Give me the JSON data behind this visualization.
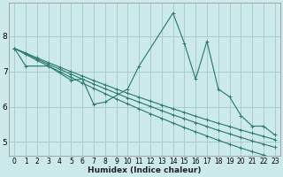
{
  "xlabel": "Humidex (Indice chaleur)",
  "xlim": [
    -0.5,
    23.5
  ],
  "ylim": [
    4.6,
    8.95
  ],
  "xticks": [
    0,
    1,
    2,
    3,
    4,
    5,
    6,
    7,
    8,
    9,
    10,
    11,
    12,
    13,
    14,
    15,
    16,
    17,
    18,
    19,
    20,
    21,
    22,
    23
  ],
  "yticks": [
    5,
    6,
    7,
    8
  ],
  "bg_color": "#cceaea",
  "grid_color": "#aacccc",
  "line_color": "#2e7d6e",
  "line1_x": [
    0,
    1,
    2,
    3,
    4,
    5,
    6,
    7,
    8,
    9,
    10,
    11,
    12,
    13,
    14,
    15,
    16,
    17,
    18,
    19,
    20,
    21,
    22,
    23
  ],
  "line1_y": [
    7.65,
    7.48,
    7.31,
    7.15,
    6.99,
    6.83,
    6.67,
    6.52,
    6.37,
    6.22,
    6.08,
    5.94,
    5.8,
    5.67,
    5.54,
    5.41,
    5.29,
    5.17,
    5.05,
    4.94,
    4.83,
    4.73,
    4.63,
    4.53
  ],
  "line2_x": [
    0,
    1,
    2,
    3,
    4,
    5,
    6,
    7,
    8,
    9,
    10,
    11,
    12,
    13,
    14,
    15,
    16,
    17,
    18,
    19,
    20,
    21,
    22,
    23
  ],
  "line2_y": [
    7.65,
    7.5,
    7.35,
    7.2,
    7.06,
    6.92,
    6.78,
    6.64,
    6.51,
    6.38,
    6.25,
    6.13,
    6.01,
    5.89,
    5.77,
    5.66,
    5.55,
    5.44,
    5.33,
    5.23,
    5.13,
    5.03,
    4.94,
    4.85
  ],
  "line3_x": [
    0,
    1,
    2,
    3,
    4,
    5,
    6,
    7,
    8,
    9,
    10,
    11,
    12,
    13,
    14,
    15,
    16,
    17,
    18,
    19,
    20,
    21,
    22,
    23
  ],
  "line3_y": [
    7.65,
    7.52,
    7.38,
    7.25,
    7.12,
    6.99,
    6.87,
    6.74,
    6.62,
    6.5,
    6.38,
    6.27,
    6.16,
    6.05,
    5.94,
    5.84,
    5.73,
    5.63,
    5.53,
    5.44,
    5.34,
    5.25,
    5.16,
    5.07
  ],
  "line4_x": [
    0,
    1,
    3,
    5,
    6,
    7,
    8,
    10,
    11,
    14,
    15,
    16,
    17,
    18,
    19,
    20,
    21,
    22,
    23
  ],
  "line4_y": [
    7.65,
    7.15,
    7.15,
    6.75,
    6.78,
    6.07,
    6.13,
    6.5,
    7.15,
    8.65,
    7.8,
    6.78,
    7.85,
    6.5,
    6.28,
    5.75,
    5.45,
    5.45,
    5.2
  ]
}
